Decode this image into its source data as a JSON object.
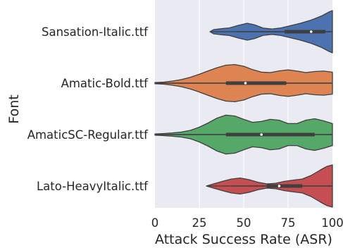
{
  "chart_data": {
    "type": "violin",
    "orientation": "horizontal",
    "title": "",
    "xlabel": "Attack Success Rate (ASR)",
    "ylabel": "Font",
    "xlim": [
      0,
      100
    ],
    "xticks": [
      0,
      25,
      50,
      75,
      100
    ],
    "grid": true,
    "background": "#eaeaf2",
    "categories": [
      "Sansation-Italic.ttf",
      "Amatic-Bold.ttf",
      "AmaticSC-Regular.ttf",
      "Lato-HeavyItalic.ttf"
    ],
    "series": [
      {
        "color": "#4c72b0",
        "box": {
          "q1": 73,
          "median": 88,
          "q3": 96,
          "whisker_low": 46,
          "whisker_high": 100
        },
        "density": [
          [
            31,
            0.0
          ],
          [
            33,
            0.1
          ],
          [
            38,
            0.15
          ],
          [
            42,
            0.18
          ],
          [
            47,
            0.3
          ],
          [
            52,
            0.4
          ],
          [
            56,
            0.33
          ],
          [
            61,
            0.17
          ],
          [
            66,
            0.13
          ],
          [
            71,
            0.18
          ],
          [
            76,
            0.28
          ],
          [
            82,
            0.4
          ],
          [
            88,
            0.55
          ],
          [
            94,
            0.75
          ],
          [
            98,
            0.93
          ],
          [
            100,
            1.0
          ]
        ]
      },
      {
        "color": "#dd8452",
        "box": {
          "q1": 40,
          "median": 51,
          "q3": 74,
          "whisker_low": 0,
          "whisker_high": 100
        },
        "density": [
          [
            0,
            0.03
          ],
          [
            5,
            0.05
          ],
          [
            10,
            0.1
          ],
          [
            15,
            0.17
          ],
          [
            20,
            0.28
          ],
          [
            25,
            0.42
          ],
          [
            30,
            0.58
          ],
          [
            35,
            0.73
          ],
          [
            40,
            0.85
          ],
          [
            45,
            0.88
          ],
          [
            50,
            0.8
          ],
          [
            55,
            0.64
          ],
          [
            60,
            0.52
          ],
          [
            65,
            0.5
          ],
          [
            70,
            0.58
          ],
          [
            75,
            0.63
          ],
          [
            80,
            0.57
          ],
          [
            85,
            0.5
          ],
          [
            90,
            0.55
          ],
          [
            95,
            0.57
          ],
          [
            100,
            0.52
          ]
        ]
      },
      {
        "color": "#55a868",
        "box": {
          "q1": 40,
          "median": 60,
          "q3": 90,
          "whisker_low": 0,
          "whisker_high": 100
        },
        "density": [
          [
            0,
            0.03
          ],
          [
            5,
            0.05
          ],
          [
            10,
            0.08
          ],
          [
            15,
            0.12
          ],
          [
            20,
            0.2
          ],
          [
            25,
            0.35
          ],
          [
            30,
            0.55
          ],
          [
            35,
            0.78
          ],
          [
            40,
            0.92
          ],
          [
            45,
            0.88
          ],
          [
            50,
            0.72
          ],
          [
            55,
            0.58
          ],
          [
            60,
            0.62
          ],
          [
            65,
            0.72
          ],
          [
            70,
            0.68
          ],
          [
            75,
            0.52
          ],
          [
            80,
            0.52
          ],
          [
            85,
            0.68
          ],
          [
            90,
            0.75
          ],
          [
            95,
            0.65
          ],
          [
            100,
            0.52
          ]
        ]
      },
      {
        "color": "#c44e52",
        "box": {
          "q1": 63,
          "median": 70,
          "q3": 83,
          "whisker_low": 43,
          "whisker_high": 100
        },
        "density": [
          [
            29,
            0.0
          ],
          [
            33,
            0.1
          ],
          [
            38,
            0.22
          ],
          [
            43,
            0.33
          ],
          [
            48,
            0.38
          ],
          [
            53,
            0.3
          ],
          [
            58,
            0.18
          ],
          [
            63,
            0.1
          ],
          [
            68,
            0.13
          ],
          [
            73,
            0.22
          ],
          [
            78,
            0.28
          ],
          [
            83,
            0.33
          ],
          [
            88,
            0.5
          ],
          [
            93,
            0.75
          ],
          [
            97,
            0.93
          ],
          [
            100,
            1.0
          ]
        ]
      }
    ]
  }
}
